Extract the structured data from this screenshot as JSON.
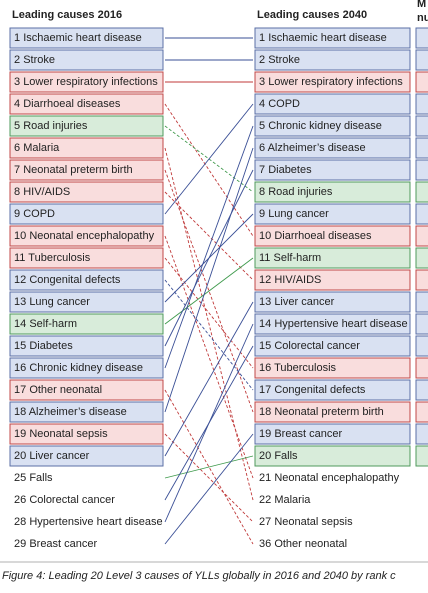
{
  "left": {
    "title": "Leading causes 2016",
    "items": [
      {
        "rank": 1,
        "name": "Ischaemic heart disease",
        "color": "blue",
        "boxed": true
      },
      {
        "rank": 2,
        "name": "Stroke",
        "color": "blue",
        "boxed": true
      },
      {
        "rank": 3,
        "name": "Lower respiratory infections",
        "color": "red",
        "boxed": true
      },
      {
        "rank": 4,
        "name": "Diarrhoeal diseases",
        "color": "red",
        "boxed": true
      },
      {
        "rank": 5,
        "name": "Road injuries",
        "color": "green",
        "boxed": true
      },
      {
        "rank": 6,
        "name": "Malaria",
        "color": "red",
        "boxed": true
      },
      {
        "rank": 7,
        "name": "Neonatal preterm birth",
        "color": "red",
        "boxed": true
      },
      {
        "rank": 8,
        "name": "HIV/AIDS",
        "color": "red",
        "boxed": true
      },
      {
        "rank": 9,
        "name": "COPD",
        "color": "blue",
        "boxed": true
      },
      {
        "rank": 10,
        "name": "Neonatal encephalopathy",
        "color": "red",
        "boxed": true
      },
      {
        "rank": 11,
        "name": "Tuberculosis",
        "color": "red",
        "boxed": true
      },
      {
        "rank": 12,
        "name": "Congenital defects",
        "color": "blue",
        "boxed": true
      },
      {
        "rank": 13,
        "name": "Lung cancer",
        "color": "blue",
        "boxed": true
      },
      {
        "rank": 14,
        "name": "Self-harm",
        "color": "green",
        "boxed": true
      },
      {
        "rank": 15,
        "name": "Diabetes",
        "color": "blue",
        "boxed": true
      },
      {
        "rank": 16,
        "name": "Chronic kidney disease",
        "color": "blue",
        "boxed": true
      },
      {
        "rank": 17,
        "name": "Other neonatal",
        "color": "red",
        "boxed": true
      },
      {
        "rank": 18,
        "name": "Alzheimer’s disease",
        "color": "blue",
        "boxed": true
      },
      {
        "rank": 19,
        "name": "Neonatal sepsis",
        "color": "red",
        "boxed": true
      },
      {
        "rank": 20,
        "name": "Liver cancer",
        "color": "blue",
        "boxed": true
      },
      {
        "rank": 25,
        "name": "Falls",
        "color": "green",
        "boxed": false
      },
      {
        "rank": 26,
        "name": "Colorectal cancer",
        "color": "blue",
        "boxed": false
      },
      {
        "rank": 28,
        "name": "Hypertensive heart disease",
        "color": "blue",
        "boxed": false
      },
      {
        "rank": 29,
        "name": "Breast cancer",
        "color": "blue",
        "boxed": false
      }
    ]
  },
  "right": {
    "title": "Leading causes 2040",
    "items": [
      {
        "rank": 1,
        "name": "Ischaemic heart disease",
        "color": "blue",
        "boxed": true
      },
      {
        "rank": 2,
        "name": "Stroke",
        "color": "blue",
        "boxed": true
      },
      {
        "rank": 3,
        "name": "Lower respiratory infections",
        "color": "red",
        "boxed": true
      },
      {
        "rank": 4,
        "name": "COPD",
        "color": "blue",
        "boxed": true
      },
      {
        "rank": 5,
        "name": "Chronic kidney disease",
        "color": "blue",
        "boxed": true
      },
      {
        "rank": 6,
        "name": "Alzheimer’s disease",
        "color": "blue",
        "boxed": true
      },
      {
        "rank": 7,
        "name": "Diabetes",
        "color": "blue",
        "boxed": true
      },
      {
        "rank": 8,
        "name": "Road injuries",
        "color": "green",
        "boxed": true
      },
      {
        "rank": 9,
        "name": "Lung cancer",
        "color": "blue",
        "boxed": true
      },
      {
        "rank": 10,
        "name": "Diarrhoeal diseases",
        "color": "red",
        "boxed": true
      },
      {
        "rank": 11,
        "name": "Self-harm",
        "color": "green",
        "boxed": true
      },
      {
        "rank": 12,
        "name": "HIV/AIDS",
        "color": "red",
        "boxed": true
      },
      {
        "rank": 13,
        "name": "Liver cancer",
        "color": "blue",
        "boxed": true
      },
      {
        "rank": 14,
        "name": "Hypertensive heart disease",
        "color": "blue",
        "boxed": true
      },
      {
        "rank": 15,
        "name": "Colorectal cancer",
        "color": "blue",
        "boxed": true
      },
      {
        "rank": 16,
        "name": "Tuberculosis",
        "color": "red",
        "boxed": true
      },
      {
        "rank": 17,
        "name": "Congenital defects",
        "color": "blue",
        "boxed": true
      },
      {
        "rank": 18,
        "name": "Neonatal preterm birth",
        "color": "red",
        "boxed": true
      },
      {
        "rank": 19,
        "name": "Breast cancer",
        "color": "blue",
        "boxed": true
      },
      {
        "rank": 20,
        "name": "Falls",
        "color": "green",
        "boxed": true
      },
      {
        "rank": 21,
        "name": "Neonatal encephalopathy",
        "color": "red",
        "boxed": false
      },
      {
        "rank": 22,
        "name": "Malaria",
        "color": "red",
        "boxed": false
      },
      {
        "rank": 27,
        "name": "Neonatal sepsis",
        "color": "red",
        "boxed": false
      },
      {
        "rank": 36,
        "name": "Other neonatal",
        "color": "red",
        "boxed": false
      }
    ]
  },
  "third_header": [
    "M",
    "nu"
  ],
  "caption": "Figure 4: Leading 20 Level 3 causes of YLLs globally in 2016 and 2040 by rank c"
}
